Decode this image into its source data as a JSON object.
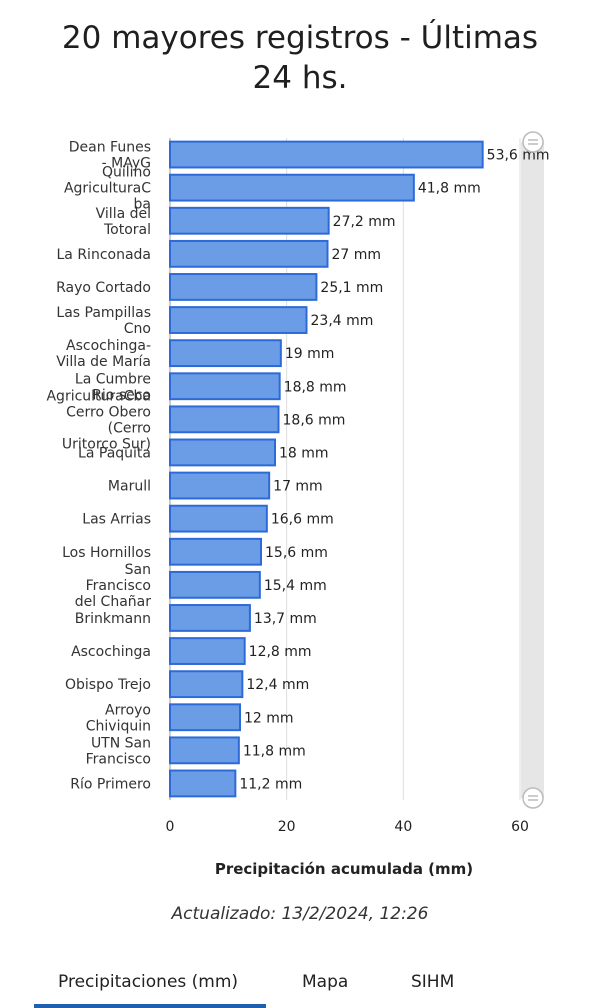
{
  "title_lines": [
    "20 mayores registros - Últimas",
    "24 hs."
  ],
  "updated": "Actualizado: 13/2/2024, 12:26",
  "tabs": [
    {
      "label": "Precipitaciones (mm)",
      "active": true
    },
    {
      "label": "Mapa",
      "active": false
    },
    {
      "label": "SIHM",
      "active": false
    }
  ],
  "colors": {
    "bar_fill": "#6a9de6",
    "bar_stroke": "#2d6ad8",
    "grid": "#dddddd",
    "scrollbar": "#e6e6e6",
    "tab_active": "#1f5fae"
  },
  "chart_data": {
    "type": "bar",
    "orientation": "horizontal",
    "title": "20 mayores registros - Últimas 24 hs.",
    "xlabel": "Precipitación acumulada (mm)",
    "ylabel": "",
    "xlim": [
      0,
      60
    ],
    "xticks": [
      0,
      20,
      40,
      60
    ],
    "grid": true,
    "categories": [
      [
        "Dean Funes",
        "- MAyG"
      ],
      [
        "Quilino",
        "AgriculturaC",
        "ba"
      ],
      [
        "Villa del",
        "Totoral"
      ],
      [
        "La Rinconada"
      ],
      [
        "Rayo Cortado"
      ],
      [
        "Las Pampillas",
        "Cno"
      ],
      [
        "Ascochinga-",
        "Villa de María"
      ],
      [
        "La Cumbre",
        "Rio seco"
      ],
      [
        "AgriculturaCba",
        "Cerro Obero",
        "(Cerro",
        "Uritorco Sur)"
      ],
      [
        "La Paquita"
      ],
      [
        "Marull"
      ],
      [
        "Las Arrias"
      ],
      [
        "Los Hornillos"
      ],
      [
        "San",
        "Francisco",
        "del Chañar"
      ],
      [
        "Brinkmann"
      ],
      [
        "Ascochinga"
      ],
      [
        "Obispo Trejo"
      ],
      [
        "Arroyo",
        "Chiviquin"
      ],
      [
        "UTN San",
        "Francisco"
      ],
      [
        "Río Primero"
      ]
    ],
    "values": [
      53.6,
      41.8,
      27.2,
      27,
      25.1,
      23.4,
      19,
      18.8,
      18.6,
      18,
      17,
      16.6,
      15.6,
      15.4,
      13.7,
      12.8,
      12.4,
      12,
      11.8,
      11.2
    ],
    "value_labels": [
      "53,6 mm",
      "41,8 mm",
      "27,2 mm",
      "27 mm",
      "25,1 mm",
      "23,4 mm",
      "19 mm",
      "18,8 mm",
      "18,6 mm",
      "18 mm",
      "17 mm",
      "16,6 mm",
      "15,6 mm",
      "15,4 mm",
      "13,7 mm",
      "12,8 mm",
      "12,4 mm",
      "12 mm",
      "11,8 mm",
      "11,2 mm"
    ]
  }
}
